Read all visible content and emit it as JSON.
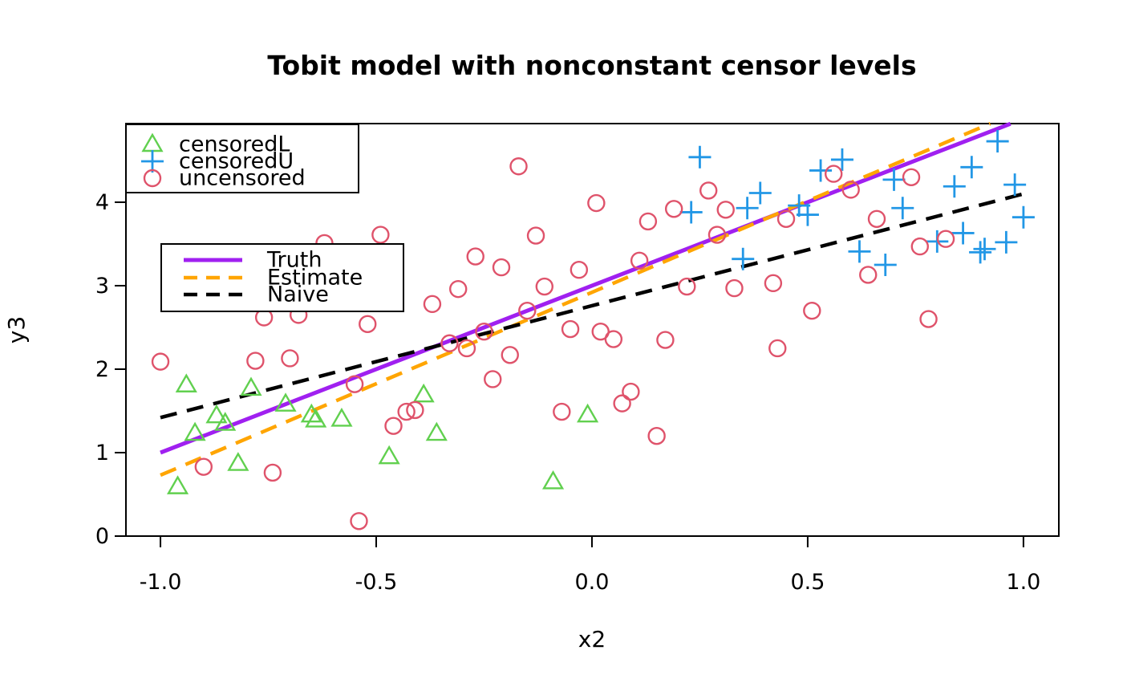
{
  "title": "Tobit model with nonconstant censor levels",
  "x_axis": {
    "label": "x2",
    "tick_labels": [
      "-1.0",
      "-0.5",
      "0.0",
      "0.5",
      "1.0"
    ],
    "tick_values": [
      -1.0,
      -0.5,
      0.0,
      0.5,
      1.0
    ]
  },
  "y_axis": {
    "label": "y3",
    "tick_labels": [
      "0",
      "1",
      "2",
      "3",
      "4"
    ],
    "tick_values": [
      0,
      1,
      2,
      3,
      4
    ]
  },
  "colors": {
    "censoredL": "#61D04F",
    "censoredU": "#2297E6",
    "uncensored": "#DF536B",
    "truth": "#A020F0",
    "estimate": "#FFA500",
    "naive": "#000000",
    "axis": "#000000"
  },
  "legends": {
    "points": {
      "items": [
        {
          "label": "censoredL",
          "marker": "triangle",
          "color": "#61D04F"
        },
        {
          "label": "censoredU",
          "marker": "plus",
          "color": "#2297E6"
        },
        {
          "label": "uncensored",
          "marker": "circle",
          "color": "#DF536B"
        }
      ]
    },
    "lines": {
      "items": [
        {
          "label": "Truth",
          "style": "solid",
          "color": "#A020F0"
        },
        {
          "label": "Estimate",
          "style": "dashed",
          "color": "#FFA500"
        },
        {
          "label": "Naive",
          "style": "dashed",
          "color": "#000000"
        }
      ]
    }
  },
  "chart_data": {
    "type": "scatter",
    "title": "Tobit model with nonconstant censor levels",
    "xlabel": "x2",
    "ylabel": "y3",
    "xlim": [
      -1.08,
      1.082
    ],
    "ylim": [
      0,
      4.942
    ],
    "grid": false,
    "series": [
      {
        "name": "censoredL",
        "marker": "triangle",
        "color": "#61D04F",
        "points": [
          [
            -0.94,
            1.81
          ],
          [
            -0.79,
            1.77
          ],
          [
            -0.71,
            1.58
          ],
          [
            -0.87,
            1.44
          ],
          [
            -0.85,
            1.35
          ],
          [
            -0.92,
            1.23
          ],
          [
            -0.65,
            1.45
          ],
          [
            -0.64,
            1.39
          ],
          [
            -0.58,
            1.4
          ],
          [
            -0.39,
            1.69
          ],
          [
            -0.36,
            1.23
          ],
          [
            -0.47,
            0.95
          ],
          [
            -0.82,
            0.87
          ],
          [
            -0.96,
            0.59
          ],
          [
            -0.01,
            1.45
          ],
          [
            -0.09,
            0.65
          ]
        ]
      },
      {
        "name": "censoredU",
        "marker": "plus",
        "color": "#2297E6",
        "points": [
          [
            0.25,
            4.54
          ],
          [
            0.23,
            3.88
          ],
          [
            0.35,
            3.32
          ],
          [
            0.36,
            3.93
          ],
          [
            0.39,
            4.11
          ],
          [
            0.48,
            3.96
          ],
          [
            0.5,
            3.85
          ],
          [
            0.53,
            4.38
          ],
          [
            0.58,
            4.51
          ],
          [
            0.7,
            4.27
          ],
          [
            0.72,
            3.93
          ],
          [
            0.62,
            3.41
          ],
          [
            0.68,
            3.25
          ],
          [
            0.8,
            3.53
          ],
          [
            0.84,
            4.19
          ],
          [
            0.86,
            3.63
          ],
          [
            0.88,
            4.42
          ],
          [
            0.9,
            3.4
          ],
          [
            0.91,
            3.44
          ],
          [
            0.96,
            3.52
          ],
          [
            0.94,
            4.73
          ],
          [
            0.98,
            4.21
          ],
          [
            1.0,
            3.82
          ]
        ]
      },
      {
        "name": "uncensored",
        "marker": "circle",
        "color": "#DF536B",
        "points": [
          [
            -1.0,
            2.09
          ],
          [
            -0.78,
            2.1
          ],
          [
            -0.7,
            2.13
          ],
          [
            -0.55,
            1.82
          ],
          [
            -0.43,
            1.49
          ],
          [
            -0.41,
            1.51
          ],
          [
            -0.46,
            1.32
          ],
          [
            -0.9,
            0.83
          ],
          [
            -0.74,
            0.76
          ],
          [
            -0.54,
            0.18
          ],
          [
            -0.49,
            3.61
          ],
          [
            -0.62,
            3.51
          ],
          [
            -0.76,
            2.62
          ],
          [
            -0.68,
            2.65
          ],
          [
            -0.37,
            2.78
          ],
          [
            -0.52,
            2.54
          ],
          [
            -0.17,
            4.43
          ],
          [
            0.27,
            4.14
          ],
          [
            0.01,
            3.99
          ],
          [
            0.19,
            3.92
          ],
          [
            0.13,
            3.77
          ],
          [
            0.31,
            3.91
          ],
          [
            0.29,
            3.61
          ],
          [
            -0.27,
            3.35
          ],
          [
            -0.21,
            3.22
          ],
          [
            -0.13,
            3.6
          ],
          [
            -0.03,
            3.19
          ],
          [
            -0.31,
            2.96
          ],
          [
            -0.11,
            2.99
          ],
          [
            0.11,
            3.3
          ],
          [
            0.22,
            2.99
          ],
          [
            0.33,
            2.97
          ],
          [
            -0.15,
            2.7
          ],
          [
            0.56,
            4.34
          ],
          [
            0.74,
            4.3
          ],
          [
            0.6,
            4.15
          ],
          [
            0.45,
            3.8
          ],
          [
            0.66,
            3.8
          ],
          [
            0.64,
            3.13
          ],
          [
            0.76,
            3.47
          ],
          [
            0.82,
            3.56
          ],
          [
            0.42,
            3.03
          ],
          [
            0.51,
            2.7
          ],
          [
            0.78,
            2.6
          ],
          [
            -0.33,
            2.31
          ],
          [
            -0.29,
            2.25
          ],
          [
            -0.25,
            2.45
          ],
          [
            -0.19,
            2.17
          ],
          [
            -0.23,
            1.88
          ],
          [
            -0.05,
            2.48
          ],
          [
            0.02,
            2.45
          ],
          [
            0.05,
            2.36
          ],
          [
            0.17,
            2.35
          ],
          [
            0.09,
            1.73
          ],
          [
            0.07,
            1.59
          ],
          [
            -0.07,
            1.49
          ],
          [
            0.15,
            1.2
          ],
          [
            0.43,
            2.25
          ]
        ]
      }
    ],
    "lines": [
      {
        "name": "Truth",
        "color": "#A020F0",
        "dash": null,
        "width": 5,
        "x": [
          -1.0,
          0.97
        ],
        "y": [
          1.0,
          4.94
        ]
      },
      {
        "name": "Estimate",
        "color": "#FFA500",
        "dash": [
          21,
          13
        ],
        "width": 4.5,
        "x": [
          -1.0,
          0.923
        ],
        "y": [
          0.73,
          4.942
        ]
      },
      {
        "name": "Naive",
        "color": "#000000",
        "dash": [
          21,
          13
        ],
        "width": 4.5,
        "x": [
          -1.0,
          1.0
        ],
        "y": [
          1.42,
          4.1
        ]
      }
    ]
  }
}
